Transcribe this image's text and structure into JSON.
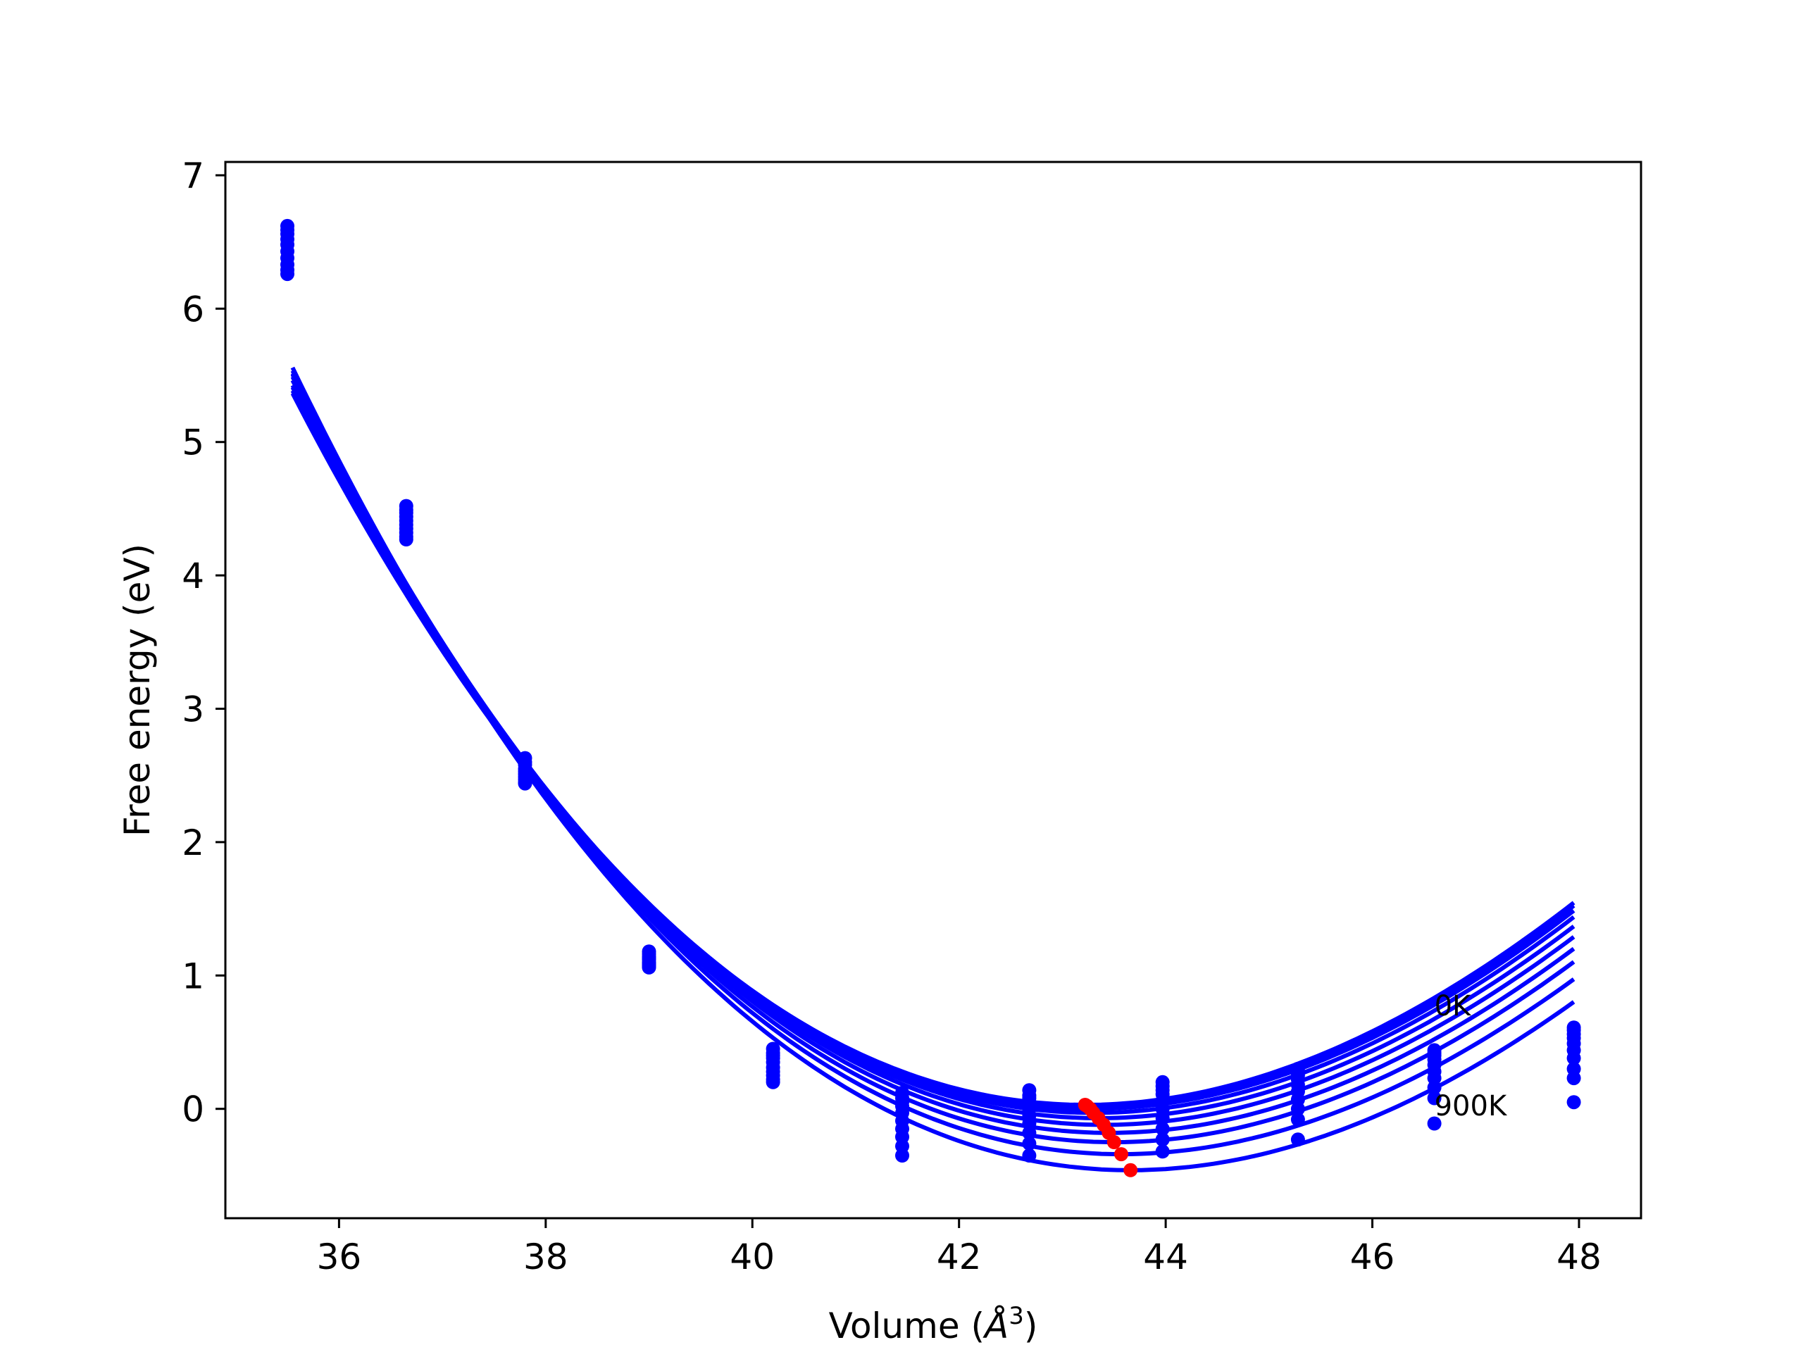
{
  "chart_data": {
    "type": "line",
    "xlabel": "Volume (",
    "xlabel_unit": "Å",
    "xlabel_sup": "3",
    "xlabel_close": ")",
    "ylabel": "Free energy (eV)",
    "xlim": [
      34.9,
      48.6
    ],
    "ylim": [
      -0.82,
      7.1
    ],
    "xticks": [
      "36",
      "38",
      "40",
      "42",
      "44",
      "46",
      "48"
    ],
    "yticks": [
      "0",
      "1",
      "2",
      "3",
      "4",
      "5",
      "6",
      "7"
    ],
    "grid": false,
    "volumes": [
      35.5,
      36.65,
      37.8,
      39.0,
      40.2,
      41.45,
      42.68,
      43.97,
      45.28,
      46.6,
      47.95
    ],
    "fit_range": [
      35.55,
      47.95
    ],
    "series_color": "#0000ff",
    "minima_color": "#ff0000",
    "series": [
      {
        "energies": [
          6.62,
          4.52,
          2.63,
          1.18,
          0.45,
          0.12,
          0.14,
          0.2,
          0.3,
          0.44,
          0.61
        ],
        "fit": {
          "v0": 43.22,
          "e0": 0.03,
          "k": 0.0765,
          "c": -0.00185
        }
      },
      {
        "energies": [
          6.59,
          4.49,
          2.6,
          1.16,
          0.42,
          0.08,
          0.1,
          0.17,
          0.27,
          0.42,
          0.59
        ],
        "fit": {
          "v0": 43.24,
          "e0": 0.02,
          "k": 0.0765,
          "c": -0.00185
        }
      },
      {
        "energies": [
          6.56,
          4.47,
          2.58,
          1.14,
          0.4,
          0.05,
          0.08,
          0.14,
          0.25,
          0.4,
          0.56
        ],
        "fit": {
          "v0": 43.27,
          "e0": 0.0,
          "k": 0.0765,
          "c": -0.00185
        }
      },
      {
        "energies": [
          6.52,
          4.44,
          2.55,
          1.13,
          0.38,
          0.02,
          0.04,
          0.11,
          0.22,
          0.37,
          0.53
        ],
        "fit": {
          "v0": 43.3,
          "e0": -0.03,
          "k": 0.0765,
          "c": -0.00185
        }
      },
      {
        "energies": [
          6.48,
          4.41,
          2.53,
          1.12,
          0.35,
          -0.03,
          0.0,
          0.06,
          0.18,
          0.33,
          0.49
        ],
        "fit": {
          "v0": 43.35,
          "e0": -0.07,
          "k": 0.0765,
          "c": -0.00185
        }
      },
      {
        "energies": [
          6.43,
          4.38,
          2.51,
          1.1,
          0.31,
          -0.09,
          -0.05,
          0.0,
          0.13,
          0.28,
          0.44
        ],
        "fit": {
          "v0": 43.4,
          "e0": -0.12,
          "k": 0.0765,
          "c": -0.00185
        }
      },
      {
        "energies": [
          6.38,
          4.35,
          2.49,
          1.09,
          0.28,
          -0.15,
          -0.11,
          -0.07,
          0.07,
          0.23,
          0.38
        ],
        "fit": {
          "v0": 43.45,
          "e0": -0.18,
          "k": 0.0765,
          "c": -0.00185
        }
      },
      {
        "energies": [
          6.33,
          4.32,
          2.47,
          1.08,
          0.25,
          -0.21,
          -0.18,
          -0.15,
          0.0,
          0.16,
          0.3
        ],
        "fit": {
          "v0": 43.5,
          "e0": -0.25,
          "k": 0.0765,
          "c": -0.00185
        }
      },
      {
        "energies": [
          6.29,
          4.29,
          2.45,
          1.07,
          0.22,
          -0.28,
          -0.26,
          -0.23,
          -0.08,
          0.08,
          0.23
        ],
        "fit": {
          "v0": 43.57,
          "e0": -0.34,
          "k": 0.0765,
          "c": -0.00185
        }
      },
      {
        "energies": [
          6.26,
          4.27,
          2.44,
          1.06,
          0.2,
          -0.35,
          -0.35,
          -0.32,
          -0.23,
          -0.11,
          0.05
        ],
        "fit": {
          "v0": 43.66,
          "e0": -0.46,
          "k": 0.0765,
          "c": -0.00185
        }
      }
    ],
    "annotations": [
      {
        "text": "0K",
        "x": 46.6,
        "y": 0.7
      },
      {
        "text": "900K",
        "x": 46.6,
        "y": -0.05
      }
    ]
  }
}
